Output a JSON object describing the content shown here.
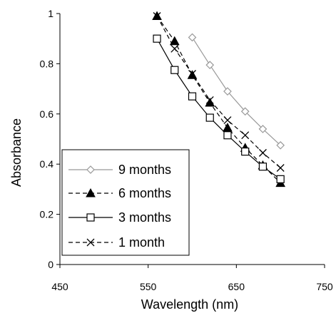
{
  "chart_data": {
    "type": "line",
    "xlabel": "Wavelength (nm)",
    "ylabel": "Absorbance",
    "xlim": [
      450,
      750
    ],
    "ylim": [
      0,
      1
    ],
    "x_ticks": [
      "450",
      "550",
      "650",
      "750"
    ],
    "y_ticks": [
      "0",
      "0.2",
      "0.4",
      "0.6",
      "0.8",
      "1"
    ],
    "grid": false,
    "legend_position": "bottom-left",
    "series": [
      {
        "name": "9 months",
        "marker": "open-diamond",
        "line": "solid",
        "color": "#999999",
        "x": [
          600,
          620,
          640,
          660,
          680,
          700
        ],
        "y": [
          0.905,
          0.795,
          0.69,
          0.61,
          0.54,
          0.475
        ]
      },
      {
        "name": "6 months",
        "marker": "filled-triangle",
        "line": "dashed",
        "color": "#000000",
        "x": [
          560,
          580,
          600,
          620,
          640,
          660,
          680,
          700
        ],
        "y": [
          0.99,
          0.89,
          0.755,
          0.645,
          0.545,
          0.465,
          0.395,
          0.325
        ]
      },
      {
        "name": "3 months",
        "marker": "open-square",
        "line": "solid",
        "color": "#000000",
        "x": [
          560,
          580,
          600,
          620,
          640,
          660,
          680,
          700
        ],
        "y": [
          0.9,
          0.775,
          0.67,
          0.585,
          0.515,
          0.45,
          0.39,
          0.34
        ]
      },
      {
        "name": "1 month",
        "marker": "x",
        "line": "dashed",
        "color": "#000000",
        "x": [
          560,
          580,
          600,
          620,
          640,
          660,
          680,
          700
        ],
        "y": [
          0.99,
          0.86,
          0.76,
          0.655,
          0.575,
          0.515,
          0.445,
          0.385
        ]
      }
    ]
  }
}
